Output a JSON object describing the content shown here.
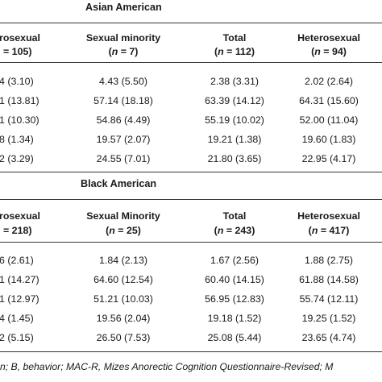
{
  "asian": {
    "title": "Asian American",
    "headers": [
      {
        "label": "rosexual",
        "n_prefix": "",
        "n_text": "= 105)",
        "partial": true
      },
      {
        "label": "Sexual minority",
        "n_prefix": "(",
        "n_text": "n",
        "n_suffix": " = 7)"
      },
      {
        "label": "Total",
        "n_prefix": "(",
        "n_text": "n",
        "n_suffix": " = 112)"
      },
      {
        "label": "Heterosexual",
        "n_prefix": "(",
        "n_text": "n",
        "n_suffix": " = 94)"
      }
    ],
    "rows": [
      [
        "4 (3.10)",
        "4.43 (5.50)",
        "2.38 (3.31)",
        "2.02 (2.64)"
      ],
      [
        "1 (13.81)",
        "57.14 (18.18)",
        "63.39 (14.12)",
        "64.31 (15.60)"
      ],
      [
        "1 (10.30)",
        "54.86 (4.49)",
        "55.19 (10.02)",
        "52.00 (11.04)"
      ],
      [
        "8 (1.34)",
        "19.57 (2.07)",
        "19.21 (1.38)",
        "19.60 (1.83)"
      ],
      [
        "2 (3.29)",
        "24.55 (7.01)",
        "21.80 (3.65)",
        "22.95 (4.17)"
      ]
    ]
  },
  "black": {
    "title": "Black American",
    "headers": [
      {
        "label": "rosexual",
        "n_text": "= 218)",
        "partial": true
      },
      {
        "label": "Sexual Minority",
        "n_prefix": "(",
        "n_text": "n",
        "n_suffix": " = 25)"
      },
      {
        "label": "Total",
        "n_prefix": "(",
        "n_text": "n",
        "n_suffix": " = 243)"
      },
      {
        "label": "Heterosexual",
        "n_prefix": "(",
        "n_text": "n",
        "n_suffix": " = 417)"
      }
    ],
    "rows": [
      [
        "6 (2.61)",
        "1.84 (2.13)",
        "1.67 (2.56)",
        "1.88 (2.75)"
      ],
      [
        "1 (14.27)",
        "64.60 (12.54)",
        "60.40 (14.15)",
        "61.88 (14.58)"
      ],
      [
        "1 (12.97)",
        "51.21 (10.03)",
        "56.95 (12.83)",
        "55.74 (12.11)"
      ],
      [
        "4 (1.45)",
        "19.56 (2.04)",
        "19.18 (1.52)",
        "19.25 (1.52)"
      ],
      [
        "2 (5.15)",
        "26.50 (7.53)",
        "25.08 (5.44)",
        "23.65 (4.74)"
      ]
    ]
  },
  "footnote": "n; B, behavior; MAC-R, Mizes Anorectic Cognition Questionnaire-Revised; M"
}
